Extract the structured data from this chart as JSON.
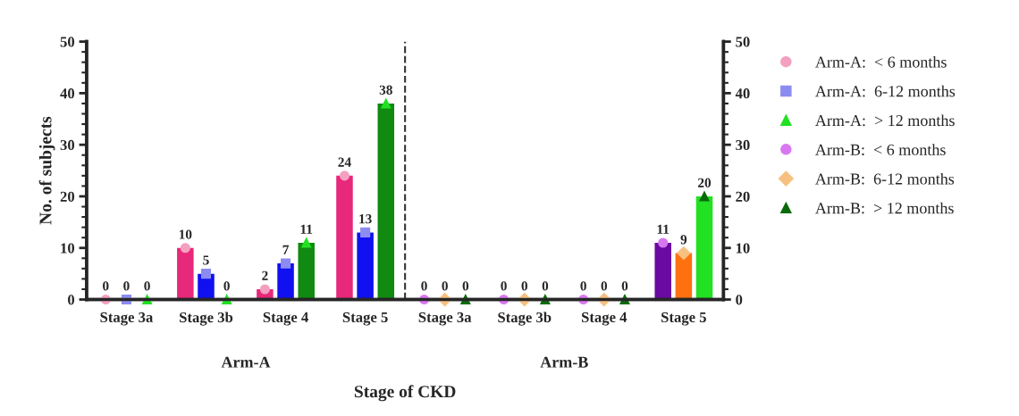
{
  "chart_data": {
    "type": "bar",
    "xlabel": "Stage of CKD",
    "ylabel": "No. of subjects",
    "categories": [
      "Stage 3a",
      "Stage 3b",
      "Stage 4",
      "Stage 5",
      "Stage 3a",
      "Stage 3b",
      "Stage 4",
      "Stage 5"
    ],
    "series": [
      {
        "colors": [
          "#e8287a",
          "#e8287a",
          "#e8287a",
          "#e8287a",
          null,
          null,
          null,
          null
        ],
        "values": [
          0,
          10,
          2,
          24,
          null,
          null,
          null,
          null
        ]
      },
      {
        "colors": [
          "#1010f0",
          "#1010f0",
          "#1010f0",
          "#1010f0",
          null,
          null,
          null,
          null
        ],
        "values": [
          0,
          5,
          7,
          13,
          null,
          null,
          null,
          null
        ]
      },
      {
        "colors": [
          "#108a10",
          "#108a10",
          "#108a10",
          "#108a10",
          null,
          null,
          null,
          null
        ],
        "values": [
          0,
          0,
          11,
          38,
          null,
          null,
          null,
          null
        ]
      },
      {
        "colors": [
          null,
          null,
          null,
          null,
          "#6a0aa0",
          "#6a0aa0",
          "#6a0aa0",
          "#6a0aa0"
        ],
        "values": [
          null,
          null,
          null,
          null,
          0,
          0,
          0,
          11
        ]
      },
      {
        "colors": [
          null,
          null,
          null,
          null,
          "#ff7010",
          "#ff7010",
          "#ff7010",
          "#ff7010"
        ],
        "values": [
          null,
          null,
          null,
          null,
          0,
          0,
          0,
          9
        ]
      },
      {
        "colors": [
          null,
          null,
          null,
          null,
          "#22e022",
          "#22e022",
          "#22e022",
          "#22e022"
        ],
        "values": [
          null,
          null,
          null,
          null,
          0,
          0,
          0,
          20
        ]
      },
      {
        "type": "scatter",
        "name": "Arm-A:  < 6 months",
        "color": "#f4a0c0",
        "marker": "circle",
        "values": [
          0,
          10,
          2,
          24,
          null,
          null,
          null,
          null
        ],
        "value_labels": [
          "0",
          "10",
          "2",
          "24",
          null,
          null,
          null,
          null
        ]
      },
      {
        "type": "scatter",
        "name": "Arm-A:  6-12 months",
        "color": "#8c8cf0",
        "marker": "square",
        "values": [
          0,
          5,
          7,
          13,
          null,
          null,
          null,
          null
        ],
        "value_labels": [
          "0",
          "5",
          "7",
          "13",
          null,
          null,
          null,
          null
        ]
      },
      {
        "type": "scatter",
        "name": "Arm-A:  > 12 months",
        "color": "#22e022",
        "marker": "triangle",
        "values": [
          0,
          0,
          11,
          38,
          null,
          null,
          null,
          null
        ],
        "value_labels": [
          "0",
          "0",
          "11",
          "38",
          null,
          null,
          null,
          null
        ]
      },
      {
        "type": "scatter",
        "name": "Arm-B:  < 6 months",
        "color": "#d878f0",
        "marker": "circle",
        "values": [
          null,
          null,
          null,
          null,
          0,
          0,
          0,
          11
        ],
        "value_labels": [
          null,
          null,
          null,
          null,
          "0",
          "0",
          "0",
          "11"
        ]
      },
      {
        "type": "scatter",
        "name": "Arm-B:  6-12 months",
        "color": "#f8c080",
        "marker": "diamond",
        "values": [
          null,
          null,
          null,
          null,
          0,
          0,
          0,
          9
        ],
        "value_labels": [
          null,
          null,
          null,
          null,
          "0",
          "0",
          "0",
          "9"
        ]
      },
      {
        "type": "scatter",
        "name": "Arm-B:  > 12 months",
        "color": "#0a6a0a",
        "marker": "triangle",
        "values": [
          null,
          null,
          null,
          null,
          0,
          0,
          0,
          20
        ],
        "value_labels": [
          null,
          null,
          null,
          null,
          "0",
          "0",
          "0",
          "20"
        ]
      }
    ],
    "ylim": [
      0,
      50
    ],
    "yticks": [
      0,
      10,
      20,
      30,
      40,
      50
    ],
    "y2lim": [
      0,
      50
    ],
    "y2ticks": [
      0,
      10,
      20,
      30,
      40,
      50
    ],
    "annotations": [
      "Arm-A",
      "Arm-B"
    ],
    "legend": "right",
    "grid": false
  }
}
